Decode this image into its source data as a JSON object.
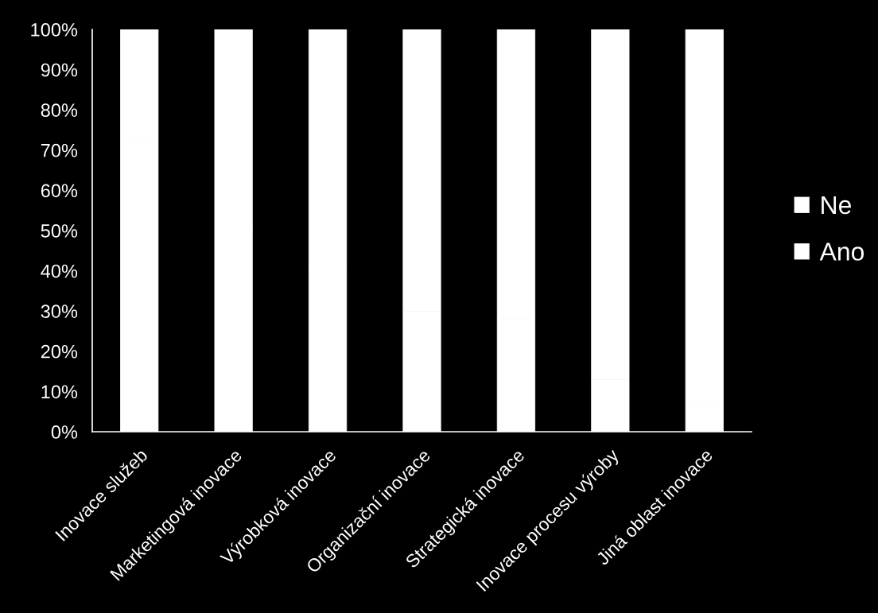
{
  "chart_data": {
    "type": "bar",
    "stacked": true,
    "categories": [
      "Inovace služeb",
      "Marketingová inovace",
      "Výrobková inovace",
      "Organizační inovace",
      "Strategická inovace",
      "Inovace procesu výroby",
      "Jiná oblast inovace"
    ],
    "series": [
      {
        "name": "Ano",
        "color": "#ffffff",
        "values": [
          73,
          50,
          41,
          30,
          28,
          13,
          7
        ]
      },
      {
        "name": "Ne",
        "color": "#ffffff",
        "values": [
          27,
          50,
          59,
          70,
          72,
          87,
          93
        ]
      }
    ],
    "ylim": [
      0,
      100
    ],
    "yticks": [
      {
        "value": 0,
        "label": "0%"
      },
      {
        "value": 10,
        "label": "10%"
      },
      {
        "value": 20,
        "label": "20%"
      },
      {
        "value": 30,
        "label": "30%"
      },
      {
        "value": 40,
        "label": "40%"
      },
      {
        "value": 50,
        "label": "50%"
      },
      {
        "value": 60,
        "label": "60%"
      },
      {
        "value": 70,
        "label": "70%"
      },
      {
        "value": 80,
        "label": "80%"
      },
      {
        "value": 90,
        "label": "90%"
      },
      {
        "value": 100,
        "label": "100%"
      }
    ],
    "legend": "right"
  }
}
